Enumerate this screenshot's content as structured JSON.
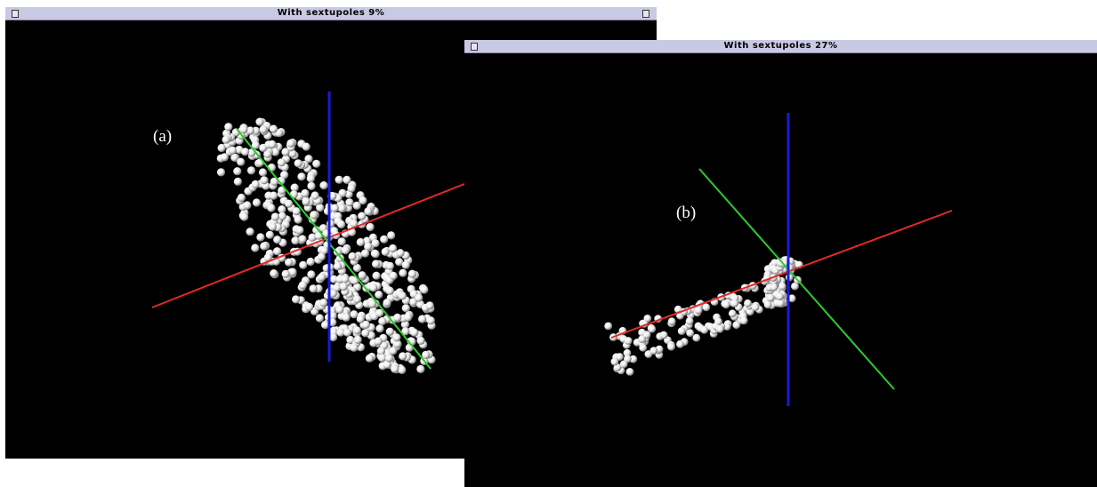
{
  "windows": [
    {
      "title": "With sextupoles 9%",
      "panel_label": "(a)",
      "axis_colors": {
        "x_axis": "#e12a2a",
        "y_axis": "#2ccc2c",
        "z_axis": "#1a1ad8"
      },
      "particle_color": "#ececec"
    },
    {
      "title": "With sextupoles 27%",
      "panel_label": "(b)",
      "axis_colors": {
        "x_axis": "#e12a2a",
        "y_axis": "#2ccc2c",
        "z_axis": "#1a1ad8"
      },
      "particle_color": "#ececec"
    }
  ]
}
